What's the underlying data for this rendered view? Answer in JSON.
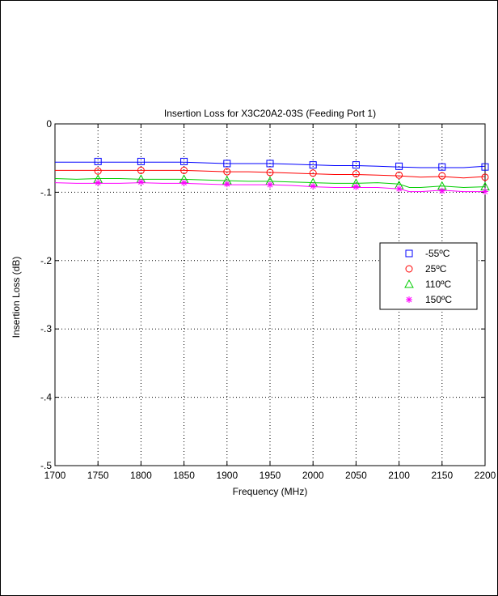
{
  "chart_data": {
    "type": "line",
    "title": "Insertion Loss for X3C20A2-03S (Feeding Port 1)",
    "xlabel": "Frequency (MHz)",
    "ylabel": "Insertion Loss (dB)",
    "xlim": [
      1700,
      2200
    ],
    "ylim": [
      -0.5,
      0
    ],
    "x_ticks": [
      1700,
      1750,
      1800,
      1850,
      1900,
      1950,
      2000,
      2050,
      2100,
      2150,
      2200
    ],
    "y_ticks": [
      0,
      -0.1,
      -0.2,
      -0.3,
      -0.4,
      -0.5
    ],
    "grid": true,
    "legend_position": "right",
    "series": [
      {
        "name": "-55ºC",
        "color": "#0000ff",
        "marker": "square",
        "line_x": [
          1700,
          1725,
          1750,
          1775,
          1800,
          1825,
          1850,
          1875,
          1900,
          1925,
          1950,
          1975,
          2000,
          2025,
          2050,
          2075,
          2100,
          2125,
          2150,
          2175,
          2200
        ],
        "line_y": [
          -0.056,
          -0.056,
          -0.056,
          -0.056,
          -0.056,
          -0.056,
          -0.056,
          -0.057,
          -0.058,
          -0.058,
          -0.058,
          -0.059,
          -0.06,
          -0.061,
          -0.061,
          -0.062,
          -0.063,
          -0.064,
          -0.064,
          -0.064,
          -0.062
        ],
        "marker_x": [
          1750,
          1800,
          1850,
          1900,
          1950,
          2000,
          2050,
          2100,
          2150,
          2200
        ],
        "marker_y": [
          -0.055,
          -0.055,
          -0.055,
          -0.058,
          -0.058,
          -0.06,
          -0.06,
          -0.062,
          -0.063,
          -0.063
        ]
      },
      {
        "name": "25ºC",
        "color": "#ff0000",
        "marker": "circle",
        "line_x": [
          1700,
          1725,
          1750,
          1775,
          1800,
          1825,
          1850,
          1875,
          1900,
          1925,
          1950,
          1975,
          2000,
          2025,
          2050,
          2075,
          2100,
          2125,
          2150,
          2175,
          2200
        ],
        "line_y": [
          -0.068,
          -0.068,
          -0.068,
          -0.068,
          -0.068,
          -0.068,
          -0.068,
          -0.069,
          -0.07,
          -0.07,
          -0.071,
          -0.072,
          -0.073,
          -0.074,
          -0.074,
          -0.075,
          -0.076,
          -0.078,
          -0.077,
          -0.079,
          -0.077
        ],
        "marker_x": [
          1750,
          1800,
          1850,
          1900,
          1950,
          2000,
          2050,
          2100,
          2150,
          2200
        ],
        "marker_y": [
          -0.069,
          -0.068,
          -0.068,
          -0.07,
          -0.071,
          -0.072,
          -0.073,
          -0.075,
          -0.076,
          -0.078
        ]
      },
      {
        "name": "110ºC",
        "color": "#00cc00",
        "marker": "triangle",
        "line_x": [
          1700,
          1725,
          1750,
          1775,
          1800,
          1825,
          1850,
          1875,
          1900,
          1925,
          1950,
          1975,
          2000,
          2025,
          2050,
          2075,
          2100,
          2112,
          2125,
          2150,
          2175,
          2200
        ],
        "line_y": [
          -0.08,
          -0.081,
          -0.08,
          -0.08,
          -0.081,
          -0.081,
          -0.081,
          -0.082,
          -0.083,
          -0.084,
          -0.084,
          -0.085,
          -0.086,
          -0.087,
          -0.087,
          -0.086,
          -0.088,
          -0.093,
          -0.093,
          -0.091,
          -0.093,
          -0.092
        ],
        "marker_x": [
          1750,
          1800,
          1850,
          1900,
          1950,
          2000,
          2050,
          2100,
          2150,
          2200
        ],
        "marker_y": [
          -0.081,
          -0.081,
          -0.081,
          -0.083,
          -0.084,
          -0.086,
          -0.087,
          -0.09,
          -0.091,
          -0.092
        ]
      },
      {
        "name": "150ºC",
        "color": "#ff00ff",
        "marker": "asterisk",
        "line_x": [
          1700,
          1725,
          1750,
          1775,
          1800,
          1825,
          1850,
          1875,
          1900,
          1925,
          1950,
          1975,
          2000,
          2025,
          2050,
          2075,
          2100,
          2112,
          2125,
          2150,
          2175,
          2200
        ],
        "line_y": [
          -0.086,
          -0.087,
          -0.087,
          -0.087,
          -0.086,
          -0.087,
          -0.087,
          -0.088,
          -0.089,
          -0.089,
          -0.089,
          -0.09,
          -0.092,
          -0.093,
          -0.093,
          -0.093,
          -0.095,
          -0.099,
          -0.099,
          -0.097,
          -0.099,
          -0.099
        ],
        "marker_x": [
          1750,
          1800,
          1850,
          1900,
          1950,
          2000,
          2050,
          2100,
          2150,
          2200
        ],
        "marker_y": [
          -0.086,
          -0.085,
          -0.086,
          -0.088,
          -0.089,
          -0.091,
          -0.092,
          -0.095,
          -0.098,
          -0.099
        ]
      }
    ]
  }
}
